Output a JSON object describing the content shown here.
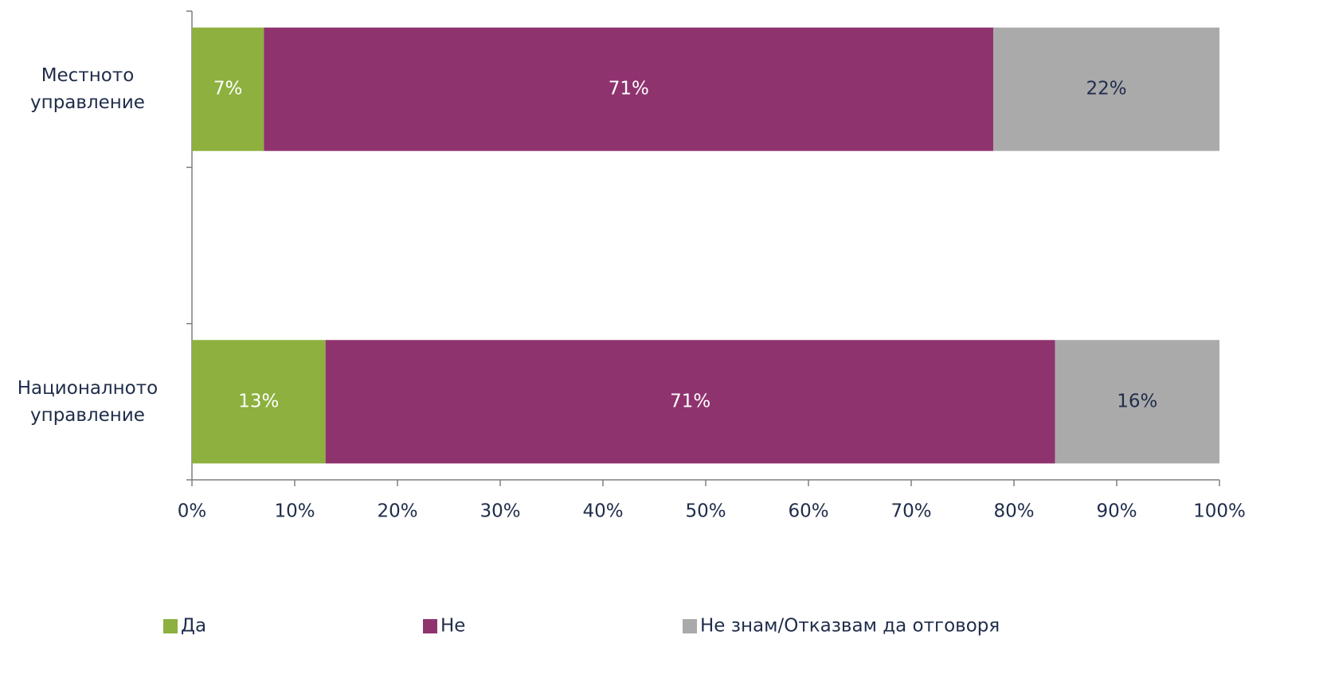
{
  "chart_data": {
    "type": "stacked_barh",
    "categories": [
      "Местното управление",
      null,
      "Националното управление"
    ],
    "series": [
      {
        "name": "Да",
        "color": "#8db03e",
        "label_color": "#ffffff",
        "values": [
          7,
          null,
          13
        ],
        "value_labels": [
          "7%",
          null,
          "13%"
        ]
      },
      {
        "name": "Не",
        "color": "#8f336f",
        "label_color": "#ffffff",
        "values": [
          71,
          null,
          71
        ],
        "value_labels": [
          "71%",
          null,
          "71%"
        ]
      },
      {
        "name": "Не знам/Отказвам да отговоря",
        "color": "#aaaaab",
        "label_color": "#1f2d4a",
        "values": [
          22,
          null,
          16
        ],
        "value_labels": [
          "22%",
          null,
          "16%"
        ]
      }
    ],
    "xlim": [
      0,
      100
    ],
    "xticks": [
      {
        "value": 0,
        "label": "0%"
      },
      {
        "value": 10,
        "label": "10%"
      },
      {
        "value": 20,
        "label": "20%"
      },
      {
        "value": 30,
        "label": "30%"
      },
      {
        "value": 40,
        "label": "40%"
      },
      {
        "value": 50,
        "label": "50%"
      },
      {
        "value": 60,
        "label": "60%"
      },
      {
        "value": 70,
        "label": "70%"
      },
      {
        "value": 80,
        "label": "80%"
      },
      {
        "value": 90,
        "label": "90%"
      },
      {
        "value": 100,
        "label": "100%"
      }
    ],
    "legend": "bottom"
  }
}
